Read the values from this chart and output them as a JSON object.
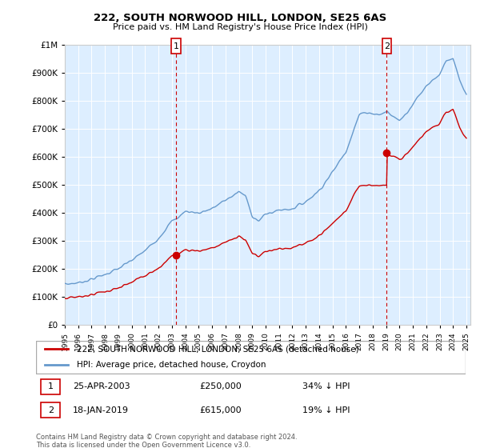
{
  "title": "222, SOUTH NORWOOD HILL, LONDON, SE25 6AS",
  "subtitle": "Price paid vs. HM Land Registry's House Price Index (HPI)",
  "sale1_date": "25-APR-2003",
  "sale1_price": 250000,
  "sale1_year": 2003.31,
  "sale1_hpi_diff": "34% ↓ HPI",
  "sale1_label": "1",
  "sale2_date": "18-JAN-2019",
  "sale2_price": 615000,
  "sale2_year": 2019.05,
  "sale2_hpi_diff": "19% ↓ HPI",
  "sale2_label": "2",
  "legend_property": "222, SOUTH NORWOOD HILL, LONDON, SE25 6AS (detached house)",
  "legend_hpi": "HPI: Average price, detached house, Croydon",
  "footer": "Contains HM Land Registry data © Crown copyright and database right 2024.\nThis data is licensed under the Open Government Licence v3.0.",
  "property_color": "#cc0000",
  "hpi_color": "#99bbdd",
  "hpi_line_color": "#6699cc",
  "sale_marker_color": "#cc0000",
  "bg_color": "#ddeeff",
  "ylim": [
    0,
    1000000
  ],
  "xmin": 1995,
  "xmax": 2025
}
